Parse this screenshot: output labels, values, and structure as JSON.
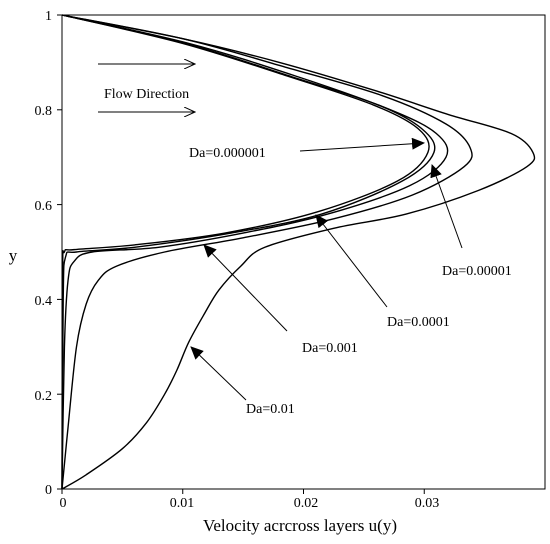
{
  "chart_data": {
    "type": "line",
    "xlabel": "Velocity acrcross layers u(y)",
    "ylabel": "y",
    "xlim": [
      0,
      0.04
    ],
    "ylim": [
      0,
      1
    ],
    "x_ticks": [
      "0",
      "0.01",
      "0.02",
      "0.03"
    ],
    "y_ticks": [
      "0",
      "0.2",
      "0.4",
      "0.6",
      "0.8",
      "1"
    ],
    "grid": false,
    "legend": "none",
    "line_color": "#000000",
    "series": [
      {
        "name": "Da=0.01",
        "points": [
          [
            0,
            0
          ],
          [
            0.002,
            0.03
          ],
          [
            0.005,
            0.085
          ],
          [
            0.007,
            0.14
          ],
          [
            0.0085,
            0.2
          ],
          [
            0.0095,
            0.25
          ],
          [
            0.0105,
            0.31
          ],
          [
            0.0118,
            0.37
          ],
          [
            0.013,
            0.42
          ],
          [
            0.0148,
            0.47
          ],
          [
            0.0168,
            0.51
          ],
          [
            0.0225,
            0.55
          ],
          [
            0.0285,
            0.58
          ],
          [
            0.0345,
            0.63
          ],
          [
            0.0385,
            0.68
          ],
          [
            0.039,
            0.71
          ],
          [
            0.0372,
            0.75
          ],
          [
            0.032,
            0.79
          ],
          [
            0.026,
            0.84
          ],
          [
            0.018,
            0.9
          ],
          [
            0.01,
            0.95
          ],
          [
            0,
            1
          ]
        ]
      },
      {
        "name": "Da=0.001",
        "points": [
          [
            0,
            0
          ],
          [
            0.0005,
            0.13
          ],
          [
            0.0012,
            0.3
          ],
          [
            0.002,
            0.39
          ],
          [
            0.003,
            0.44
          ],
          [
            0.0045,
            0.47
          ],
          [
            0.0085,
            0.5
          ],
          [
            0.015,
            0.53
          ],
          [
            0.0225,
            0.57
          ],
          [
            0.029,
            0.62
          ],
          [
            0.0333,
            0.68
          ],
          [
            0.0338,
            0.72
          ],
          [
            0.0318,
            0.77
          ],
          [
            0.0265,
            0.83
          ],
          [
            0.0185,
            0.89
          ],
          [
            0.01,
            0.95
          ],
          [
            0,
            1
          ]
        ]
      },
      {
        "name": "Da=0.0001",
        "points": [
          [
            0,
            0
          ],
          [
            0.0002,
            0.3
          ],
          [
            0.0005,
            0.44
          ],
          [
            0.001,
            0.48
          ],
          [
            0.0025,
            0.5
          ],
          [
            0.008,
            0.51
          ],
          [
            0.015,
            0.54
          ],
          [
            0.022,
            0.58
          ],
          [
            0.0288,
            0.64
          ],
          [
            0.0318,
            0.7
          ],
          [
            0.031,
            0.75
          ],
          [
            0.0272,
            0.8
          ],
          [
            0.0195,
            0.87
          ],
          [
            0.0105,
            0.94
          ],
          [
            0,
            1
          ]
        ]
      },
      {
        "name": "Da=0.00001",
        "points": [
          [
            0,
            0
          ],
          [
            0.0001,
            0.4
          ],
          [
            0.0003,
            0.49
          ],
          [
            0.0012,
            0.5
          ],
          [
            0.006,
            0.51
          ],
          [
            0.014,
            0.54
          ],
          [
            0.0215,
            0.58
          ],
          [
            0.0282,
            0.65
          ],
          [
            0.0308,
            0.71
          ],
          [
            0.0298,
            0.76
          ],
          [
            0.0262,
            0.81
          ],
          [
            0.019,
            0.87
          ],
          [
            0.0102,
            0.94
          ],
          [
            0,
            1
          ]
        ]
      },
      {
        "name": "Da=0.000001",
        "points": [
          [
            0,
            0
          ],
          [
            5e-05,
            0.45
          ],
          [
            0.0002,
            0.5
          ],
          [
            0.001,
            0.505
          ],
          [
            0.006,
            0.515
          ],
          [
            0.0135,
            0.54
          ],
          [
            0.0212,
            0.585
          ],
          [
            0.0278,
            0.65
          ],
          [
            0.0303,
            0.71
          ],
          [
            0.0295,
            0.76
          ],
          [
            0.0258,
            0.81
          ],
          [
            0.0188,
            0.87
          ],
          [
            0.01,
            0.94
          ],
          [
            0,
            1
          ]
        ]
      }
    ],
    "annotations": [
      {
        "text": "Flow Direction"
      },
      {
        "text": "Da=0.000001"
      },
      {
        "text": "Da=0.00001"
      },
      {
        "text": "Da=0.0001"
      },
      {
        "text": "Da=0.001"
      },
      {
        "text": "Da=0.01"
      }
    ]
  }
}
